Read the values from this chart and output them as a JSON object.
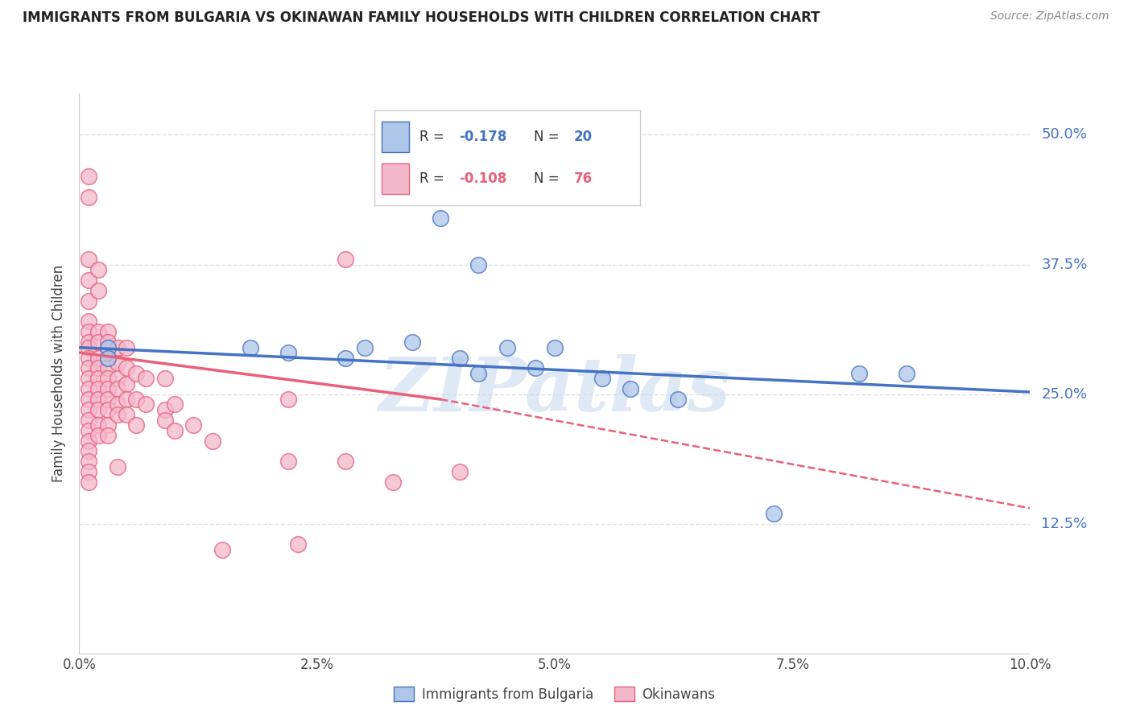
{
  "title": "IMMIGRANTS FROM BULGARIA VS OKINAWAN FAMILY HOUSEHOLDS WITH CHILDREN CORRELATION CHART",
  "source": "Source: ZipAtlas.com",
  "ylabel": "Family Households with Children",
  "ytick_labels": [
    "12.5%",
    "25.0%",
    "37.5%",
    "50.0%"
  ],
  "ytick_values": [
    0.125,
    0.25,
    0.375,
    0.5
  ],
  "xtick_labels": [
    "0.0%",
    "2.5%",
    "5.0%",
    "7.5%",
    "10.0%"
  ],
  "xtick_values": [
    0.0,
    0.025,
    0.05,
    0.075,
    0.1
  ],
  "xmin": 0.0,
  "xmax": 0.1,
  "ymin": 0.0,
  "ymax": 0.54,
  "blue_color": "#aec6e8",
  "pink_color": "#f4b8cc",
  "blue_line_color": "#4472c4",
  "pink_line_color": "#e8607a",
  "blue_scatter": [
    [
      0.003,
      0.295
    ],
    [
      0.003,
      0.285
    ],
    [
      0.018,
      0.295
    ],
    [
      0.022,
      0.29
    ],
    [
      0.028,
      0.285
    ],
    [
      0.03,
      0.295
    ],
    [
      0.035,
      0.3
    ],
    [
      0.04,
      0.285
    ],
    [
      0.042,
      0.27
    ],
    [
      0.045,
      0.295
    ],
    [
      0.048,
      0.275
    ],
    [
      0.05,
      0.295
    ],
    [
      0.038,
      0.42
    ],
    [
      0.042,
      0.375
    ],
    [
      0.055,
      0.265
    ],
    [
      0.058,
      0.255
    ],
    [
      0.063,
      0.245
    ],
    [
      0.082,
      0.27
    ],
    [
      0.087,
      0.27
    ],
    [
      0.073,
      0.135
    ]
  ],
  "pink_scatter": [
    [
      0.001,
      0.46
    ],
    [
      0.001,
      0.44
    ],
    [
      0.001,
      0.38
    ],
    [
      0.001,
      0.36
    ],
    [
      0.001,
      0.34
    ],
    [
      0.001,
      0.32
    ],
    [
      0.001,
      0.31
    ],
    [
      0.001,
      0.3
    ],
    [
      0.001,
      0.295
    ],
    [
      0.001,
      0.285
    ],
    [
      0.001,
      0.275
    ],
    [
      0.001,
      0.265
    ],
    [
      0.001,
      0.255
    ],
    [
      0.001,
      0.245
    ],
    [
      0.001,
      0.235
    ],
    [
      0.001,
      0.225
    ],
    [
      0.001,
      0.215
    ],
    [
      0.001,
      0.205
    ],
    [
      0.001,
      0.195
    ],
    [
      0.001,
      0.185
    ],
    [
      0.001,
      0.175
    ],
    [
      0.001,
      0.165
    ],
    [
      0.002,
      0.37
    ],
    [
      0.002,
      0.35
    ],
    [
      0.002,
      0.31
    ],
    [
      0.002,
      0.3
    ],
    [
      0.002,
      0.285
    ],
    [
      0.002,
      0.275
    ],
    [
      0.002,
      0.265
    ],
    [
      0.002,
      0.255
    ],
    [
      0.002,
      0.245
    ],
    [
      0.002,
      0.235
    ],
    [
      0.002,
      0.22
    ],
    [
      0.002,
      0.21
    ],
    [
      0.003,
      0.31
    ],
    [
      0.003,
      0.3
    ],
    [
      0.003,
      0.285
    ],
    [
      0.003,
      0.275
    ],
    [
      0.003,
      0.265
    ],
    [
      0.003,
      0.255
    ],
    [
      0.003,
      0.245
    ],
    [
      0.003,
      0.235
    ],
    [
      0.003,
      0.22
    ],
    [
      0.003,
      0.21
    ],
    [
      0.004,
      0.295
    ],
    [
      0.004,
      0.28
    ],
    [
      0.004,
      0.265
    ],
    [
      0.004,
      0.255
    ],
    [
      0.004,
      0.24
    ],
    [
      0.004,
      0.23
    ],
    [
      0.004,
      0.18
    ],
    [
      0.005,
      0.295
    ],
    [
      0.005,
      0.275
    ],
    [
      0.005,
      0.26
    ],
    [
      0.005,
      0.245
    ],
    [
      0.005,
      0.23
    ],
    [
      0.006,
      0.27
    ],
    [
      0.006,
      0.245
    ],
    [
      0.006,
      0.22
    ],
    [
      0.007,
      0.265
    ],
    [
      0.007,
      0.24
    ],
    [
      0.009,
      0.265
    ],
    [
      0.009,
      0.235
    ],
    [
      0.009,
      0.225
    ],
    [
      0.01,
      0.24
    ],
    [
      0.01,
      0.215
    ],
    [
      0.012,
      0.22
    ],
    [
      0.014,
      0.205
    ],
    [
      0.015,
      0.1
    ],
    [
      0.022,
      0.245
    ],
    [
      0.022,
      0.185
    ],
    [
      0.028,
      0.185
    ],
    [
      0.04,
      0.175
    ],
    [
      0.028,
      0.38
    ],
    [
      0.023,
      0.105
    ],
    [
      0.033,
      0.165
    ]
  ],
  "blue_line": {
    "x0": 0.0,
    "y0": 0.295,
    "x1": 0.1,
    "y1": 0.252
  },
  "pink_line_solid_x0": 0.0,
  "pink_line_solid_y0": 0.29,
  "pink_line_solid_x1": 0.038,
  "pink_line_solid_y1": 0.245,
  "pink_line_dash_x0": 0.038,
  "pink_line_dash_y0": 0.245,
  "pink_line_dash_x1": 0.1,
  "pink_line_dash_y1": 0.14,
  "watermark_text": "ZIPatlas",
  "watermark_color": "#c5d8f0",
  "background_color": "#ffffff",
  "grid_color": "#e0e0e0",
  "legend_r_blue": "-0.178",
  "legend_n_blue": "20",
  "legend_r_pink": "-0.108",
  "legend_n_pink": "76",
  "legend_label_blue": "Immigrants from Bulgaria",
  "legend_label_pink": "Okinawans"
}
